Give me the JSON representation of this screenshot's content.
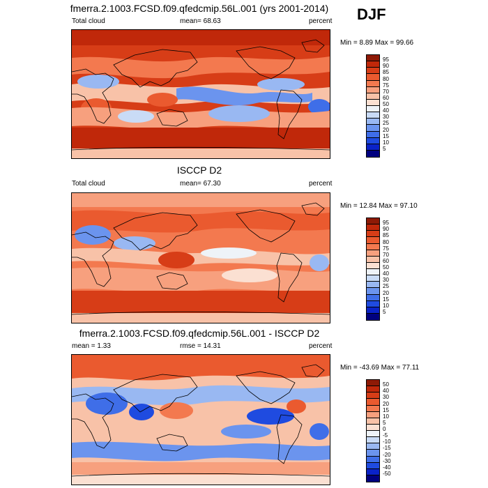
{
  "season_label": "DJF",
  "colors": {
    "cloud": [
      "#00007f",
      "#0a22c8",
      "#1f4be0",
      "#3f6ee8",
      "#6b94ee",
      "#99b8f2",
      "#c9dbf6",
      "#eef3f8",
      "#fbe0d2",
      "#f8c2a8",
      "#f7a07e",
      "#f3794f",
      "#ea5a2f",
      "#d73d17",
      "#c0280a",
      "#8e1a06"
    ],
    "diff": [
      "#00007f",
      "#0a22c8",
      "#1f4be0",
      "#3f6ee8",
      "#6b94ee",
      "#99b8f2",
      "#c9dbf6",
      "#eef3f8",
      "#fbe0d2",
      "#f8c2a8",
      "#f7a07e",
      "#f3794f",
      "#ea5a2f",
      "#d73d17",
      "#c0280a",
      "#8e1a06"
    ]
  },
  "panels": [
    {
      "title": "fmerra.2.1003.FCSD.f09.qfedcmip.56L.001 (yrs 2001-2014)",
      "left_label": "Total cloud",
      "center_label": "mean=  68.63",
      "right_label": "percent",
      "minmax": "Min =   8.89 Max =  99.66"
    },
    {
      "title": "ISCCP D2",
      "left_label": "Total cloud",
      "center_label": "mean=  67.30",
      "right_label": "percent",
      "minmax": "Min =  12.84 Max =  97.10"
    },
    {
      "title": "fmerra.2.1003.FCSD.f09.qfedcmip.56L.001 - ISCCP D2",
      "left_label": "mean =   1.33",
      "center_label": "rmse =  14.31",
      "right_label": "percent",
      "minmax": "Min = -43.69 Max =  77.11"
    }
  ],
  "chart_data": [
    {
      "type": "heatmap",
      "title": "fmerra.2.1003.FCSD.f09.qfedcmip.56L.001 (yrs 2001-2014)",
      "variable": "Total cloud",
      "units": "percent",
      "mean": 68.63,
      "min": 8.89,
      "max": 99.66,
      "levels": [
        5,
        10,
        15,
        20,
        25,
        30,
        40,
        50,
        60,
        70,
        75,
        80,
        85,
        90,
        95
      ],
      "level_labels": [
        "95",
        "90",
        "85",
        "80",
        "75",
        "70",
        "60",
        "50",
        "40",
        "30",
        "25",
        "20",
        "15",
        "10",
        "5"
      ]
    },
    {
      "type": "heatmap",
      "title": "ISCCP D2",
      "variable": "Total cloud",
      "units": "percent",
      "mean": 67.3,
      "min": 12.84,
      "max": 97.1,
      "levels": [
        5,
        10,
        15,
        20,
        25,
        30,
        40,
        50,
        60,
        70,
        75,
        80,
        85,
        90,
        95
      ],
      "level_labels": [
        "95",
        "90",
        "85",
        "80",
        "75",
        "70",
        "60",
        "50",
        "40",
        "30",
        "25",
        "20",
        "15",
        "10",
        "5"
      ]
    },
    {
      "type": "heatmap",
      "title": "fmerra.2.1003.FCSD.f09.qfedcmip.56L.001 - ISCCP D2",
      "units": "percent",
      "mean": 1.33,
      "rmse": 14.31,
      "min": -43.69,
      "max": 77.11,
      "levels": [
        -50,
        -40,
        -30,
        -20,
        -15,
        -10,
        -5,
        0,
        5,
        10,
        15,
        20,
        30,
        40,
        50
      ],
      "level_labels": [
        "50",
        "40",
        "30",
        "20",
        "15",
        "10",
        "5",
        "0",
        "-5",
        "-10",
        "-15",
        "-20",
        "-30",
        "-40",
        "-50"
      ]
    }
  ]
}
